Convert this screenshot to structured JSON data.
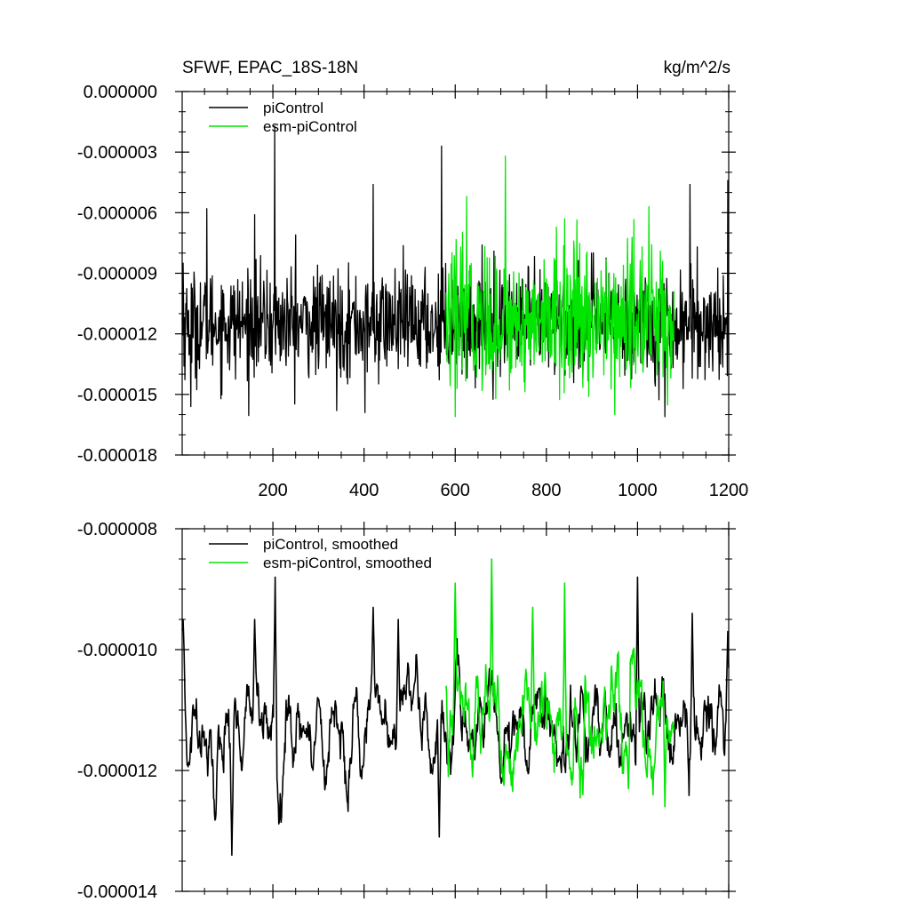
{
  "colors": {
    "piControl": "#000000",
    "esm_piControl": "#00e600",
    "axis": "#000000",
    "background": "#ffffff"
  },
  "chart_data": [
    {
      "type": "line",
      "title": "SFWF, EPAC_18S-18N",
      "units": "kg/m^2/s",
      "xlabel": "",
      "ylabel": "",
      "xlim": [
        1,
        1200
      ],
      "ylim": [
        -1.8e-05,
        0.0
      ],
      "xticks": [
        200,
        400,
        600,
        800,
        1000,
        1200
      ],
      "xtick_labels": [
        "200",
        "400",
        "600",
        "800",
        "1000",
        "1200"
      ],
      "yticks": [
        0.0,
        -3e-06,
        -6e-06,
        -9e-06,
        -1.2e-05,
        -1.5e-05,
        -1.8e-05
      ],
      "ytick_labels": [
        "0.000000",
        "-0.000003",
        "-0.000006",
        "-0.000009",
        "-0.000012",
        "-0.000015",
        "-0.000018"
      ],
      "legend_position": "top-left",
      "grid": false,
      "series": [
        {
          "name": "piControl",
          "color": "#000000",
          "x_range": [
            1,
            1200
          ],
          "mean": -1.15e-05,
          "noise_sd": 1.3e-06,
          "extremes": [
            {
              "x": 3,
              "y": -8.5e-06
            },
            {
              "x": 20,
              "y": -1.56e-05
            },
            {
              "x": 55,
              "y": -5.8e-06
            },
            {
              "x": 160,
              "y": -6.1e-06
            },
            {
              "x": 204,
              "y": -1.7e-06
            },
            {
              "x": 250,
              "y": -7.1e-06
            },
            {
              "x": 340,
              "y": -1.58e-05
            },
            {
              "x": 402,
              "y": -1.59e-05
            },
            {
              "x": 420,
              "y": -4.6e-06
            },
            {
              "x": 570,
              "y": -2.7e-06
            },
            {
              "x": 1060,
              "y": -1.61e-05
            },
            {
              "x": 1115,
              "y": -4.6e-06
            },
            {
              "x": 1198,
              "y": -4.4e-06
            }
          ]
        },
        {
          "name": "esm-piControl",
          "color": "#00e600",
          "x_range": [
            580,
            1080
          ],
          "mean": -1.13e-05,
          "noise_sd": 1.7e-06,
          "extremes": [
            {
              "x": 600,
              "y": -1.61e-05
            },
            {
              "x": 625,
              "y": -5.2e-06
            },
            {
              "x": 710,
              "y": -3.2e-06
            },
            {
              "x": 840,
              "y": -6.3e-06
            },
            {
              "x": 950,
              "y": -1.6e-05
            },
            {
              "x": 1025,
              "y": -5.7e-06
            }
          ]
        }
      ]
    },
    {
      "type": "line",
      "title": "",
      "xlabel": "",
      "ylabel": "",
      "xlim": [
        1,
        1200
      ],
      "ylim": [
        -1.4e-05,
        -8e-06
      ],
      "xticks": [
        200,
        400,
        600,
        800,
        1000,
        1200
      ],
      "xtick_labels": [],
      "yticks": [
        -8e-06,
        -1e-05,
        -1.2e-05,
        -1.4e-05
      ],
      "ytick_labels": [
        "-0.000008",
        "-0.000010",
        "-0.000012",
        "-0.000014"
      ],
      "legend_position": "top-left",
      "grid": false,
      "series": [
        {
          "name": "piControl, smoothed",
          "color": "#000000",
          "x_range": [
            1,
            1200
          ],
          "mean": -1.13e-05,
          "noise_sd": 4.5e-07,
          "extremes": [
            {
              "x": 3,
              "y": -9.5e-06
            },
            {
              "x": 110,
              "y": -1.34e-05
            },
            {
              "x": 160,
              "y": -9.5e-06
            },
            {
              "x": 205,
              "y": -8.8e-06
            },
            {
              "x": 420,
              "y": -9.3e-06
            },
            {
              "x": 475,
              "y": -9.5e-06
            },
            {
              "x": 565,
              "y": -1.31e-05
            },
            {
              "x": 1000,
              "y": -8.8e-06
            },
            {
              "x": 1120,
              "y": -9.4e-06
            },
            {
              "x": 1198,
              "y": -9.7e-06
            }
          ]
        },
        {
          "name": "esm-piControl, smoothed",
          "color": "#00e600",
          "x_range": [
            580,
            1080
          ],
          "mean": -1.12e-05,
          "noise_sd": 5e-07,
          "extremes": [
            {
              "x": 585,
              "y": -1.21e-05
            },
            {
              "x": 600,
              "y": -8.9e-06
            },
            {
              "x": 680,
              "y": -8.5e-06
            },
            {
              "x": 770,
              "y": -9.3e-06
            },
            {
              "x": 840,
              "y": -8.9e-06
            },
            {
              "x": 880,
              "y": -1.24e-05
            },
            {
              "x": 980,
              "y": -1.23e-05
            },
            {
              "x": 1060,
              "y": -1.26e-05
            }
          ]
        }
      ]
    }
  ]
}
